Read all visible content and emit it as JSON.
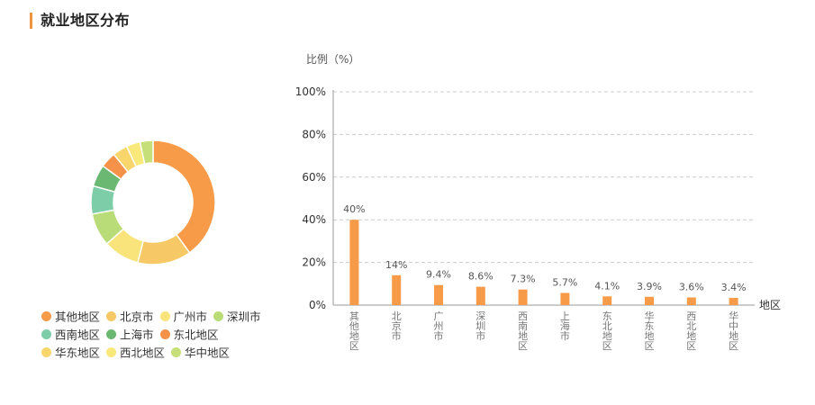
{
  "page": {
    "title": "就业地区分布"
  },
  "colors": {
    "accent": "#f0953f",
    "bar": "#f79b48",
    "grid": "#cccccc",
    "axis": "#999999"
  },
  "legend": {
    "rows": [
      [
        0,
        1,
        2,
        3
      ],
      [
        4,
        5,
        6
      ],
      [
        7,
        8,
        9
      ]
    ]
  },
  "chart_data": [
    {
      "type": "pie",
      "donut": true,
      "categories": [
        "其他地区",
        "北京市",
        "广州市",
        "深圳市",
        "西南地区",
        "上海市",
        "东北地区",
        "华东地区",
        "西北地区",
        "华中地区"
      ],
      "values": [
        40,
        14,
        9.4,
        8.6,
        7.3,
        5.7,
        4.1,
        3.9,
        3.6,
        3.4
      ],
      "colors": [
        "#f79b48",
        "#f6c966",
        "#f9e47c",
        "#b9dc78",
        "#7ccda8",
        "#6ab872",
        "#f5924a",
        "#f8d66b",
        "#f9e87a",
        "#c6df78"
      ],
      "legend": "bottom-left"
    },
    {
      "type": "bar",
      "categories": [
        "其他地区",
        "北京市",
        "广州市",
        "深圳市",
        "西南地区",
        "上海市",
        "东北地区",
        "华东地区",
        "西北地区",
        "华中地区"
      ],
      "values": [
        40,
        14,
        9.4,
        8.6,
        7.3,
        5.7,
        4.1,
        3.9,
        3.6,
        3.4
      ],
      "data_labels": [
        "40%",
        "14%",
        "9.4%",
        "8.6%",
        "7.3%",
        "5.7%",
        "4.1%",
        "3.9%",
        "3.6%",
        "3.4%"
      ],
      "ylabel": "比例（%）",
      "xlabel": "地区",
      "ylim": [
        0,
        100
      ],
      "yticks": [
        0,
        20,
        40,
        60,
        80,
        100
      ],
      "ytick_labels": [
        "0%",
        "20%",
        "40%",
        "60%",
        "80%",
        "100%"
      ],
      "grid": true
    }
  ]
}
